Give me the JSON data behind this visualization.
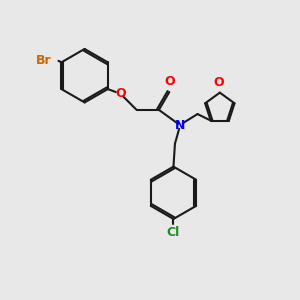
{
  "background_color": "#e8e8e8",
  "bond_color": "#1a1a1a",
  "atom_colors": {
    "Br": "#cc6600",
    "O": "#ff0000",
    "N": "#0000ff",
    "Cl": "#228b22"
  },
  "figsize": [
    3.0,
    3.0
  ],
  "dpi": 100,
  "xlim": [
    0,
    10
  ],
  "ylim": [
    0,
    10
  ],
  "font_size": 9,
  "lw": 1.5
}
